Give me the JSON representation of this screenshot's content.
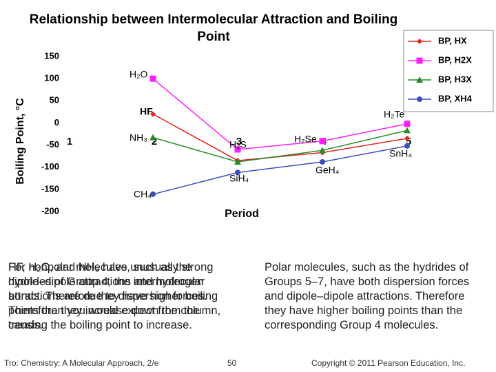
{
  "chart_data": {
    "type": "line",
    "title": "Relationship between Intermolecular Attraction and Boiling Point",
    "x_label": "Period",
    "y_label": "Boiling Point, °C",
    "categories": [
      "1",
      "2",
      "3",
      "4",
      "5"
    ],
    "ylim": [
      -200,
      150
    ],
    "yticks": [
      -200,
      -150,
      -100,
      -50,
      0,
      50,
      100,
      150
    ],
    "grid": false,
    "legend": "upper right",
    "series": [
      {
        "name": "BP, HX",
        "color": "#e3241f",
        "marker": "diamond",
        "values": [
          null,
          20,
          -85,
          -67,
          -35
        ]
      },
      {
        "name": "BP, H2X",
        "color": "#ff1eff",
        "marker": "square",
        "values": [
          null,
          100,
          -60,
          -41,
          -2
        ]
      },
      {
        "name": "BP, H3X",
        "color": "#2a8a2a",
        "marker": "triangle",
        "values": [
          null,
          -33,
          -88,
          -62,
          -17
        ]
      },
      {
        "name": "BP, XH4",
        "color": "#3b4cc0",
        "marker": "circle",
        "values": [
          null,
          -161,
          -112,
          -88,
          -52
        ]
      }
    ],
    "annotations": [
      "H₂O",
      "HF",
      "NH₃",
      "H₂S",
      "CH₄",
      "SiH₄",
      "H₂Se",
      "GeH₄",
      "H₂Te",
      "SnH₄"
    ]
  },
  "text_boxes": {
    "left_a": "For nonpolar molecules, such as the hydrides of Group 4, the intermolecular attractions are due to dispersion forces. Therefore they increase down the column, causing the boiling point to increase.",
    "left_b": "HF, H₂O, and NH₃ have unusually strong dipole–dipole attractions and hydrogen bonds. Therefore they have higher boiling points than you would expect from the trends.",
    "right": "Polar molecules, such as the hydrides of Groups 5–7, have both dispersion forces and dipole–dipole attractions. Therefore they have higher boiling points than the corresponding Group 4 molecules."
  },
  "footer": {
    "source": "Tro: Chemistry: A Molecular Approach, 2/e",
    "page": "50",
    "copyright": "Copyright © 2011 Pearson Education, Inc."
  }
}
